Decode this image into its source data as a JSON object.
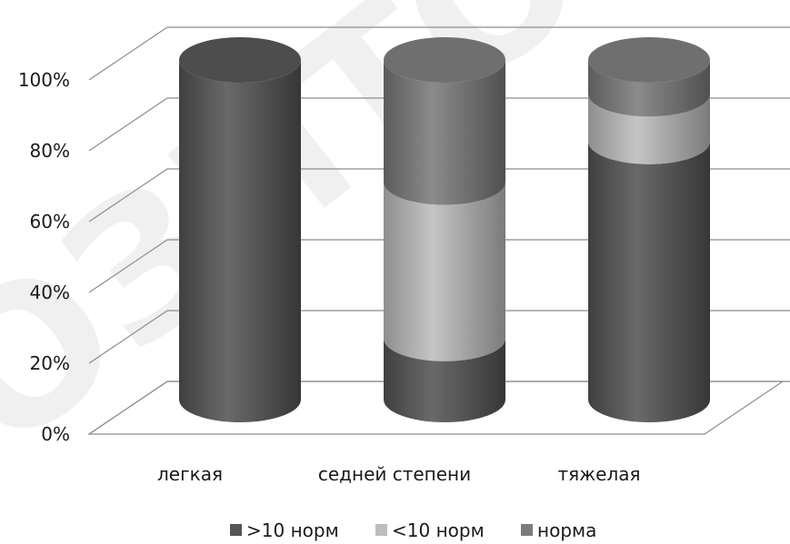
{
  "watermark": {
    "text": "ОЗИТО",
    "color": "#000000"
  },
  "chart_data": {
    "type": "bar",
    "stacked": true,
    "render_style": "3d-cylinder",
    "categories": [
      "легкая",
      "седней  степени",
      "тяжелая"
    ],
    "series": [
      {
        "name": ">10 норм",
        "color": "#555555",
        "values": [
          100,
          18,
          76
        ]
      },
      {
        "name": "<10 норм",
        "color": "#bdbdbd",
        "values": [
          0,
          46,
          14
        ]
      },
      {
        "name": "норма",
        "color": "#7b7b7b",
        "values": [
          0,
          36,
          10
        ]
      }
    ],
    "yticks": [
      "0%",
      "20%",
      "40%",
      "60%",
      "80%",
      "100%"
    ],
    "ylim": [
      0,
      100
    ],
    "grid": true,
    "legend_position": "bottom",
    "title": "",
    "xlabel": "",
    "ylabel": ""
  }
}
